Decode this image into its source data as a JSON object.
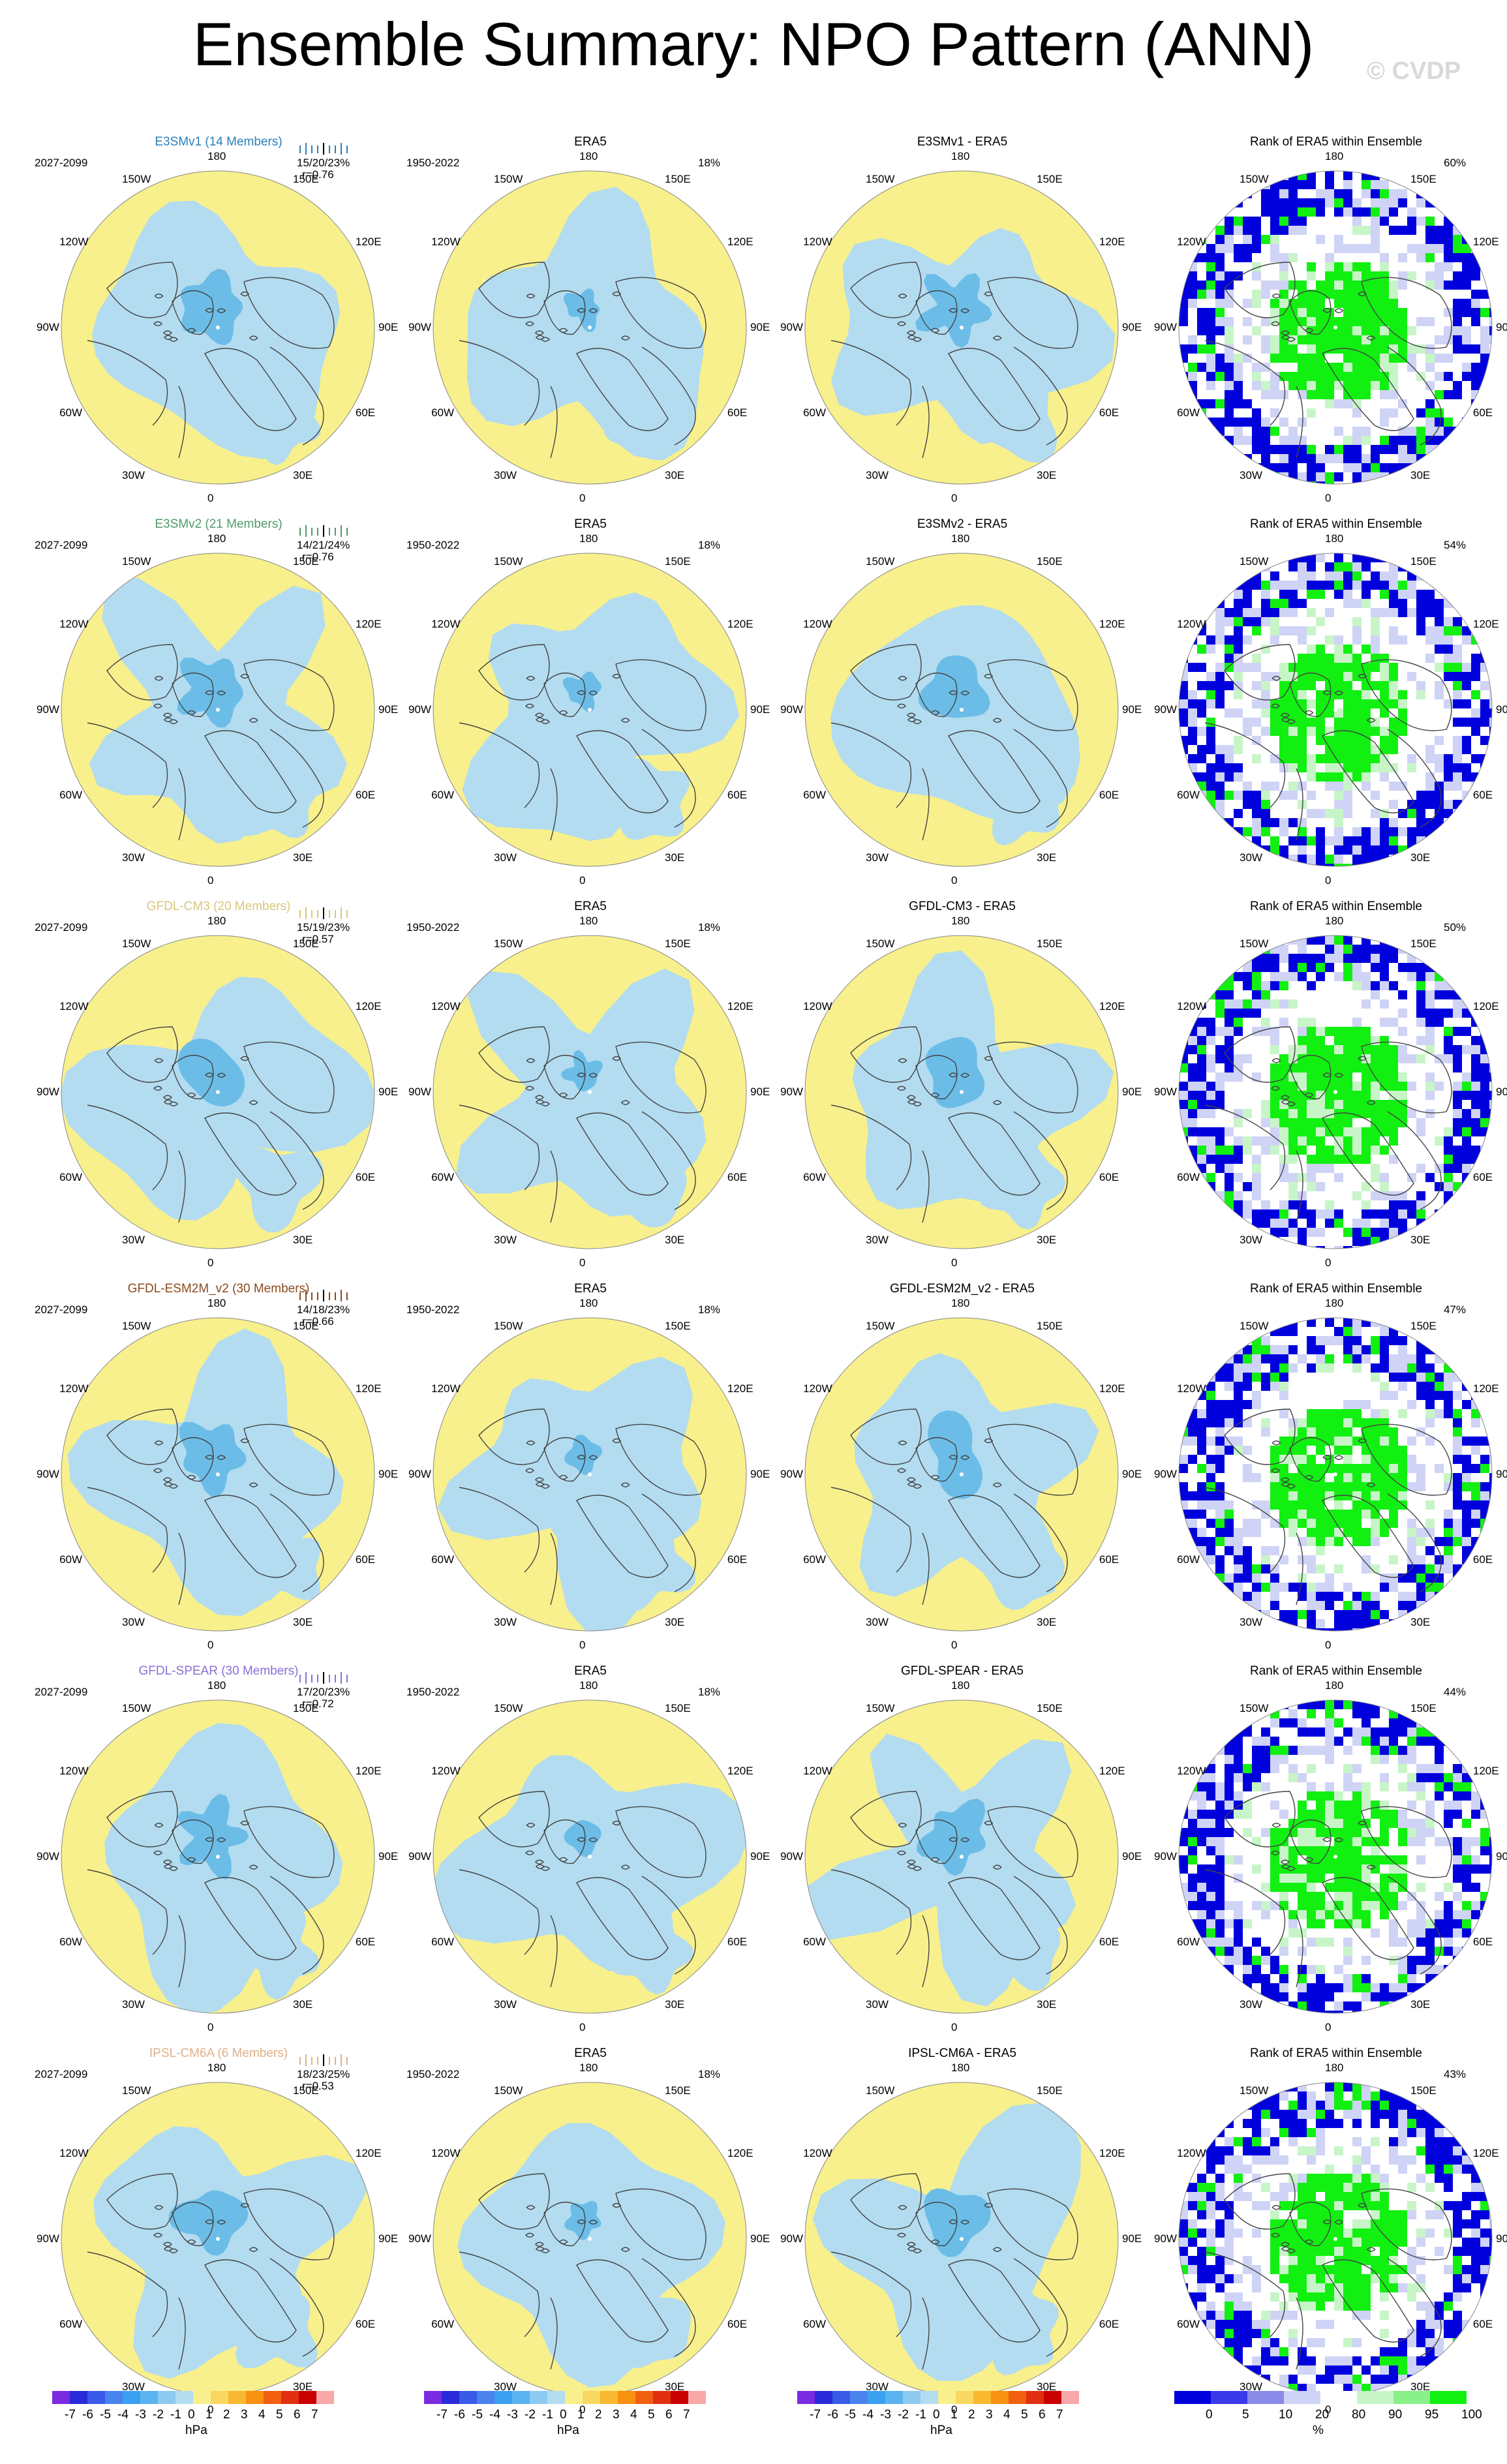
{
  "title": "Ensemble Summary: NPO Pattern (ANN)",
  "watermark": "© CVDP",
  "lon_labels": [
    "180",
    "150E",
    "120E",
    "90E",
    "60E",
    "30E",
    "0",
    "30W",
    "60W",
    "90W",
    "120W",
    "150W"
  ],
  "colors": {
    "positive_fill": "#f8f08c",
    "negative_fill": "#b3dcf0",
    "strong_negative": "#6bbde8",
    "rank_blue": "#0000dd",
    "rank_light_blue": "#cfd3f5",
    "rank_green": "#11f011",
    "rank_light_green": "#c8f5c8"
  },
  "rows": [
    {
      "model": "E3SMv1 (14 Members)",
      "model_color": "#2b7fb8",
      "period": "2027-2099",
      "stats": "15/20/23%",
      "corr": "r=0.76",
      "era_period": "1950-2022",
      "era_pct": "18%",
      "diff_title": "E3SMv1 - ERA5",
      "rank_title": "Rank of ERA5 within Ensemble",
      "rank_pct": "60%"
    },
    {
      "model": "E3SMv2 (21 Members)",
      "model_color": "#4f9a6a",
      "period": "2027-2099",
      "stats": "14/21/24%",
      "corr": "r=0.76",
      "era_period": "1950-2022",
      "era_pct": "18%",
      "diff_title": "E3SMv2 - ERA5",
      "rank_title": "Rank of ERA5 within Ensemble",
      "rank_pct": "54%"
    },
    {
      "model": "GFDL-CM3 (20 Members)",
      "model_color": "#d8c77a",
      "period": "2027-2099",
      "stats": "15/19/23%",
      "corr": "r=0.57",
      "era_period": "1950-2022",
      "era_pct": "18%",
      "diff_title": "GFDL-CM3 - ERA5",
      "rank_title": "Rank of ERA5 within Ensemble",
      "rank_pct": "50%"
    },
    {
      "model": "GFDL-ESM2M_v2 (30 Members)",
      "model_color": "#8b4a1e",
      "period": "2027-2099",
      "stats": "14/18/23%",
      "corr": "r=0.66",
      "era_period": "1950-2022",
      "era_pct": "18%",
      "diff_title": "GFDL-ESM2M_v2 - ERA5",
      "rank_title": "Rank of ERA5 within Ensemble",
      "rank_pct": "47%"
    },
    {
      "model": "GFDL-SPEAR (30 Members)",
      "model_color": "#8a6fd8",
      "period": "2027-2099",
      "stats": "17/20/23%",
      "corr": "r=0.72",
      "era_period": "1950-2022",
      "era_pct": "18%",
      "diff_title": "GFDL-SPEAR - ERA5",
      "rank_title": "Rank of ERA5 within Ensemble",
      "rank_pct": "44%"
    },
    {
      "model": "IPSL-CM6A (6 Members)",
      "model_color": "#e0b088",
      "period": "2027-2099",
      "stats": "18/23/25%",
      "corr": "r=0.53",
      "era_period": "1950-2022",
      "era_pct": "18%",
      "diff_title": "IPSL-CM6A - ERA5",
      "rank_title": "Rank of ERA5 within Ensemble",
      "rank_pct": "43%"
    }
  ],
  "era_title": "ERA5",
  "colorbar_hpa": {
    "ticks": [
      "-7",
      "-6",
      "-5",
      "-4",
      "-3",
      "-2",
      "-1",
      "0",
      "1",
      "2",
      "3",
      "4",
      "5",
      "6",
      "7"
    ],
    "colors": [
      "#7a2ae0",
      "#2a2ad8",
      "#3a5ae8",
      "#4a82ee",
      "#3aa0f0",
      "#5ab4f0",
      "#8ccaf0",
      "#b3dcf0",
      "#f8f08c",
      "#f8d860",
      "#f8b830",
      "#f89010",
      "#f06010",
      "#e03010",
      "#c80000",
      "#f8a8a8"
    ],
    "unit": "hPa"
  },
  "colorbar_rank": {
    "ticks": [
      "0",
      "5",
      "10",
      "20",
      "80",
      "90",
      "95",
      "100"
    ],
    "colors": [
      "#0000dd",
      "#3a3ae8",
      "#8a8ae8",
      "#cfd3f5",
      "#ffffff",
      "#c8f5c8",
      "#8af08a",
      "#11f011"
    ],
    "unit": "%"
  }
}
